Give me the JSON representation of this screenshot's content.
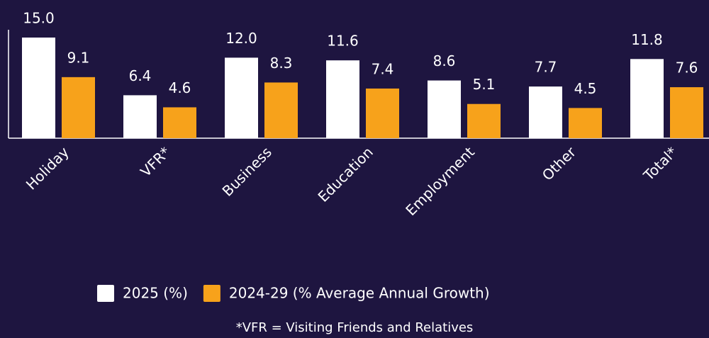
{
  "chart_data": {
    "type": "bar",
    "categories": [
      "Holiday",
      "VFR*",
      "Business",
      "Education",
      "Employment",
      "Other",
      "Total*"
    ],
    "series": [
      {
        "name": "2025 (%)",
        "color": "#ffffff",
        "values": [
          15.0,
          6.4,
          12.0,
          11.6,
          8.6,
          7.7,
          11.8
        ],
        "value_labels": [
          "15.0",
          "6.4",
          "12.0",
          "11.6",
          "8.6",
          "7.7",
          "11.8"
        ]
      },
      {
        "name": "2024-29 (% Average Annual Growth)",
        "color": "#f7a21b",
        "values": [
          9.1,
          4.6,
          8.3,
          7.4,
          5.1,
          4.5,
          7.6
        ],
        "value_labels": [
          "9.1",
          "4.6",
          "8.3",
          "7.4",
          "5.1",
          "4.5",
          "7.6"
        ]
      }
    ],
    "ylim": [
      0,
      15
    ],
    "footnote": "*VFR = Visiting Friends and Relatives"
  }
}
